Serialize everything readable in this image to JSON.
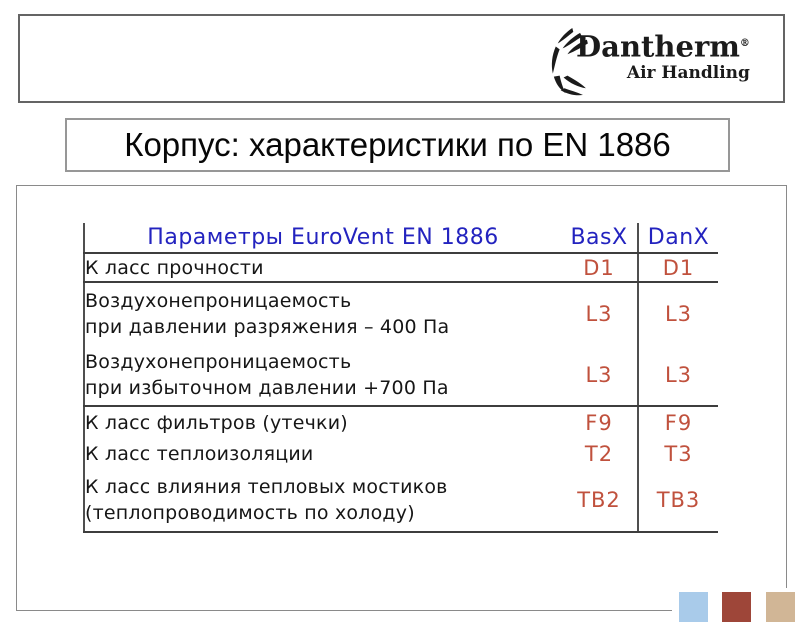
{
  "header": {
    "logo": {
      "brand": "Dantherm",
      "registered": "®",
      "tagline": "Air Handling"
    }
  },
  "title": "Корпус: характеристики по EN 1886",
  "table": {
    "header": {
      "parameters": "Параметры EuroVent EN 1886",
      "basx": "BasX",
      "danx": "DanX"
    },
    "rows": [
      {
        "label": "К ласс прочности",
        "basx": "D1",
        "danx": "D1"
      },
      {
        "label": "Воздухонепроницаемость\nпри давлении разряжения – 400 Па",
        "basx": "L3",
        "danx": "L3"
      },
      {
        "label": "Воздухонепроницаемость\nпри избыточном давлении +700 Па",
        "basx": "L3",
        "danx": "L3"
      },
      {
        "label": "К ласс фильтров (утечки)",
        "basx": "F9",
        "danx": "F9"
      },
      {
        "label": "К ласс теплоизоляции",
        "basx": "T2",
        "danx": "T3"
      },
      {
        "label": "К ласс влияния тепловых мостиков\n(теплопроводимость по холоду)",
        "basx": "TB2",
        "danx": "TB3"
      }
    ]
  },
  "colors": {
    "table_header_blue": "#2323bf",
    "table_value_red": "#c0513d",
    "table_line_gray": "#4f4f4f",
    "box_border_gray": "#8a8a8a"
  },
  "footer_squares": [
    {
      "name": "blue",
      "color": "#a9cbea"
    },
    {
      "name": "red",
      "color": "#9e4639"
    },
    {
      "name": "tan",
      "color": "#d1b696"
    }
  ]
}
